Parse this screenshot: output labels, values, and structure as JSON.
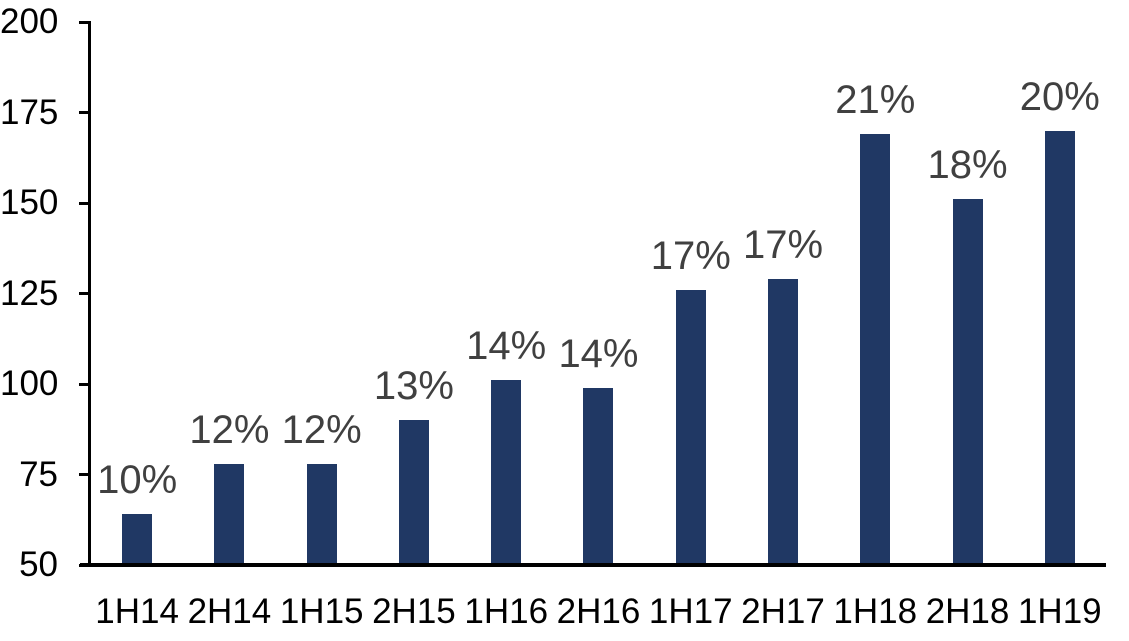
{
  "chart_data": {
    "type": "bar",
    "title": "",
    "xlabel": "",
    "ylabel": "",
    "categories": [
      "1H14",
      "2H14",
      "1H15",
      "2H15",
      "1H16",
      "2H16",
      "1H17",
      "2H17",
      "1H18",
      "2H18",
      "1H19"
    ],
    "values": [
      64,
      78,
      78,
      90,
      101,
      99,
      126,
      129,
      169,
      151,
      170
    ],
    "bar_labels": [
      "10%",
      "12%",
      "12%",
      "13%",
      "14%",
      "14%",
      "17%",
      "17%",
      "21%",
      "18%",
      "20%"
    ],
    "ylim": [
      50,
      200
    ],
    "yticks": [
      50,
      75,
      100,
      125,
      150,
      175,
      200
    ],
    "grid": false,
    "legend": false,
    "bar_color": "#203864",
    "bar_label_color": "#404040",
    "axis_color": "#000000",
    "background_color": "#ffffff"
  }
}
